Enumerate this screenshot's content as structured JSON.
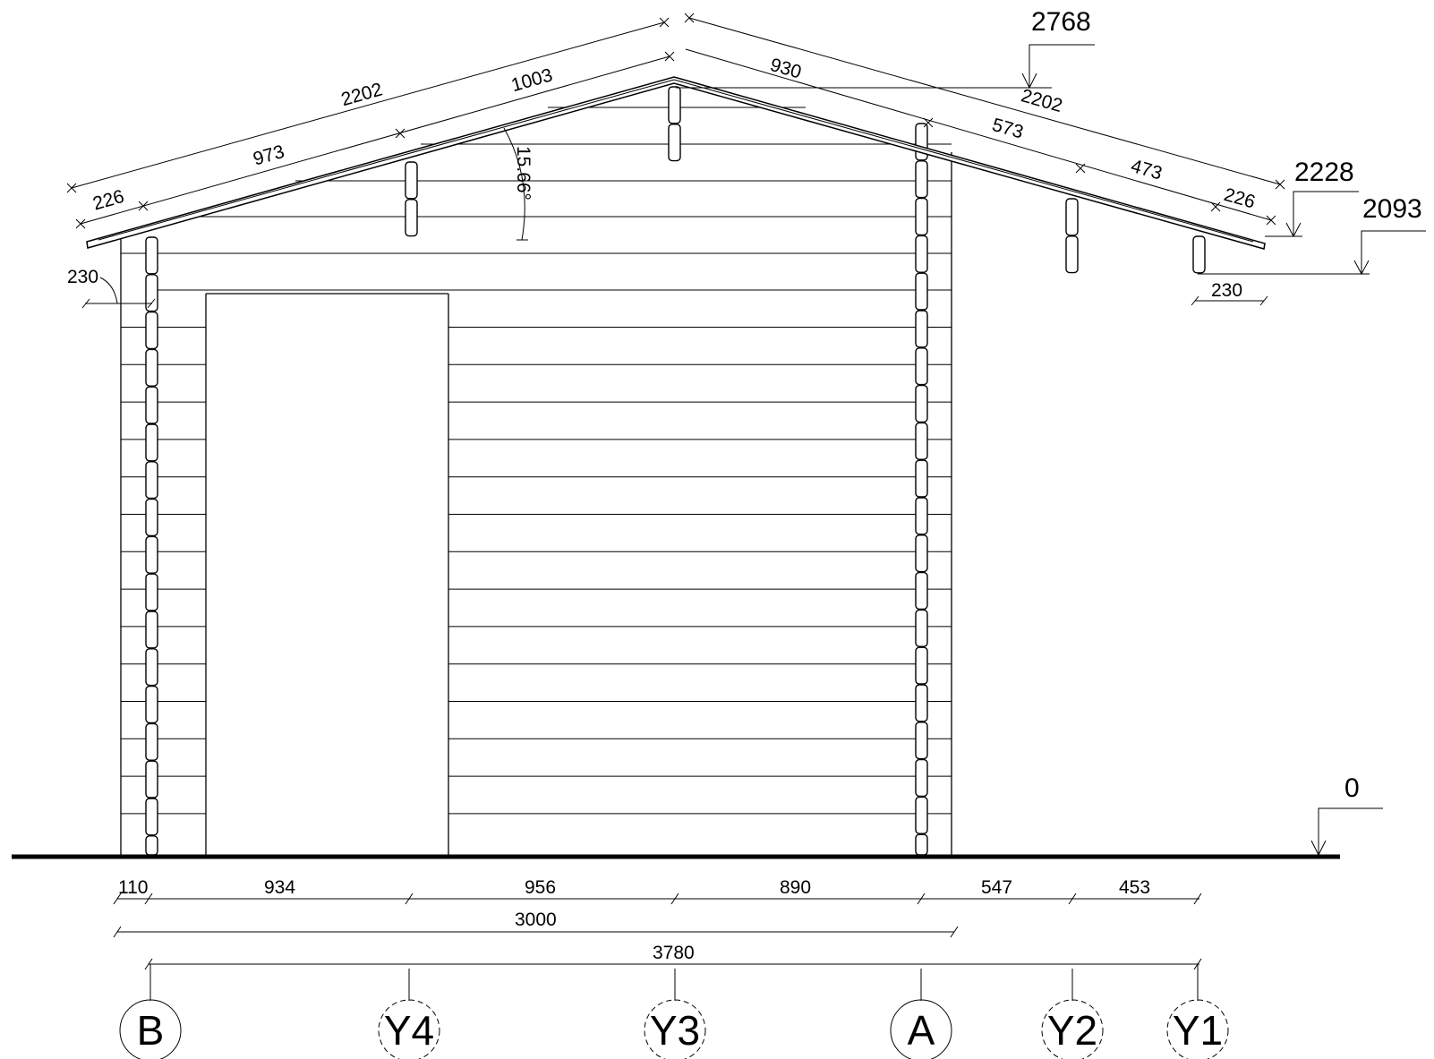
{
  "roof": {
    "angle": "15.66°",
    "left_slope": {
      "total": "2202",
      "segments": [
        "226",
        "973",
        "1003"
      ]
    },
    "right_slope": {
      "total": "2202",
      "segments": [
        "930",
        "573",
        "473",
        "226"
      ]
    }
  },
  "overhang": {
    "left": "230",
    "right": "230"
  },
  "levels": {
    "ridge": "2768",
    "eave_top": "2228",
    "eave_bottom": "2093",
    "ground": "0"
  },
  "bottom_dims": {
    "row1": [
      "110",
      "934",
      "956",
      "890",
      "547",
      "453"
    ],
    "row2": "3000",
    "row3": "3780"
  },
  "axes": [
    "B",
    "Y4",
    "Y3",
    "A",
    "Y2",
    "Y1"
  ]
}
